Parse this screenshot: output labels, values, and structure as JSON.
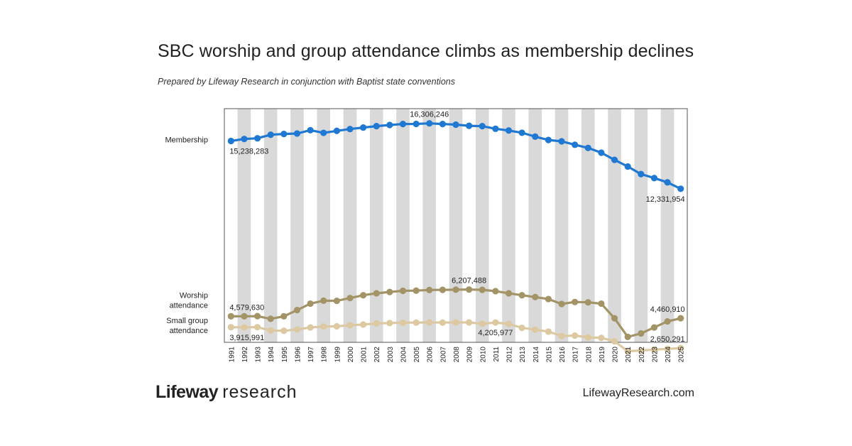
{
  "title": "SBC worship and group attendance climbs as membership declines",
  "subtitle": "Prepared by Lifeway Research in conjunction with Baptist state conventions",
  "footer": {
    "logo_brand": "Lifeway",
    "logo_sub": "research",
    "url": "LifewayResearch.com"
  },
  "colors": {
    "membership": "#1f78d1",
    "worship": "#a39467",
    "small_group": "#dcc9a2",
    "band": "#d9d9d9"
  },
  "chart_data": {
    "type": "line",
    "x": [
      1991,
      1992,
      1993,
      1994,
      1995,
      1996,
      1997,
      1998,
      1999,
      2000,
      2001,
      2002,
      2003,
      2004,
      2005,
      2006,
      2007,
      2008,
      2009,
      2010,
      2011,
      2012,
      2013,
      2014,
      2015,
      2016,
      2017,
      2018,
      2019,
      2020,
      2021,
      2022,
      2023,
      2024,
      2025
    ],
    "ylim": [
      3000000,
      17200000
    ],
    "grid": false,
    "series": [
      {
        "name": "Membership",
        "color": "#1f78d1",
        "values": [
          15238283,
          15358000,
          15399000,
          15614000,
          15663000,
          15691000,
          15891000,
          15730000,
          15851000,
          15961000,
          16053000,
          16138000,
          16206000,
          16268000,
          16271000,
          16306246,
          16266000,
          16228000,
          16160000,
          16136000,
          15978000,
          15872000,
          15736000,
          15500000,
          15295000,
          15216000,
          15006000,
          14813000,
          14525000,
          14089000,
          13681000,
          13224000,
          12982000,
          12722000,
          12331954
        ],
        "labels": [
          {
            "index": 0,
            "text": "15,238,283",
            "pos": "below"
          },
          {
            "index": 15,
            "text": "16,306,246",
            "pos": "above"
          },
          {
            "index": 34,
            "text": "12,331,954",
            "pos": "below"
          }
        ]
      },
      {
        "name": "Worship attendance",
        "label_lines": [
          "Worship",
          "attendance"
        ],
        "color": "#a39467",
        "values": [
          4579630,
          4580000,
          4590000,
          4430000,
          4580000,
          4960000,
          5350000,
          5530000,
          5520000,
          5690000,
          5860000,
          5980000,
          6060000,
          6130000,
          6140000,
          6180000,
          6190000,
          6200000,
          6207488,
          6190000,
          6110000,
          5980000,
          5860000,
          5750000,
          5630000,
          5330000,
          5450000,
          5430000,
          5350000,
          4460000,
          3330000,
          3540000,
          3900000,
          4270000,
          4460910
        ],
        "labels": [
          {
            "index": 0,
            "text": "4,579,630",
            "pos": "above"
          },
          {
            "index": 18,
            "text": "6,207,488",
            "pos": "above"
          },
          {
            "index": 34,
            "text": "4,460,910",
            "pos": "above"
          }
        ]
      },
      {
        "name": "Small group attendance",
        "label_lines": [
          "Small group",
          "attendance"
        ],
        "color": "#dcc9a2",
        "values": [
          3915991,
          3910000,
          3920000,
          3720000,
          3700000,
          3780000,
          3900000,
          3960000,
          3970000,
          4040000,
          4080000,
          4150000,
          4170000,
          4190000,
          4200000,
          4210000,
          4200000,
          4210000,
          4210000,
          4130000,
          4205977,
          4120000,
          3880000,
          3770000,
          3650000,
          3380000,
          3410000,
          3300000,
          3270000,
          3060000,
          2460000,
          2500000,
          2560000,
          2600000,
          2650291
        ],
        "labels": [
          {
            "index": 0,
            "text": "3,915,991",
            "pos": "below"
          },
          {
            "index": 20,
            "text": "4,205,977",
            "pos": "below"
          },
          {
            "index": 34,
            "text": "2,650,291",
            "pos": "above"
          }
        ]
      }
    ]
  }
}
